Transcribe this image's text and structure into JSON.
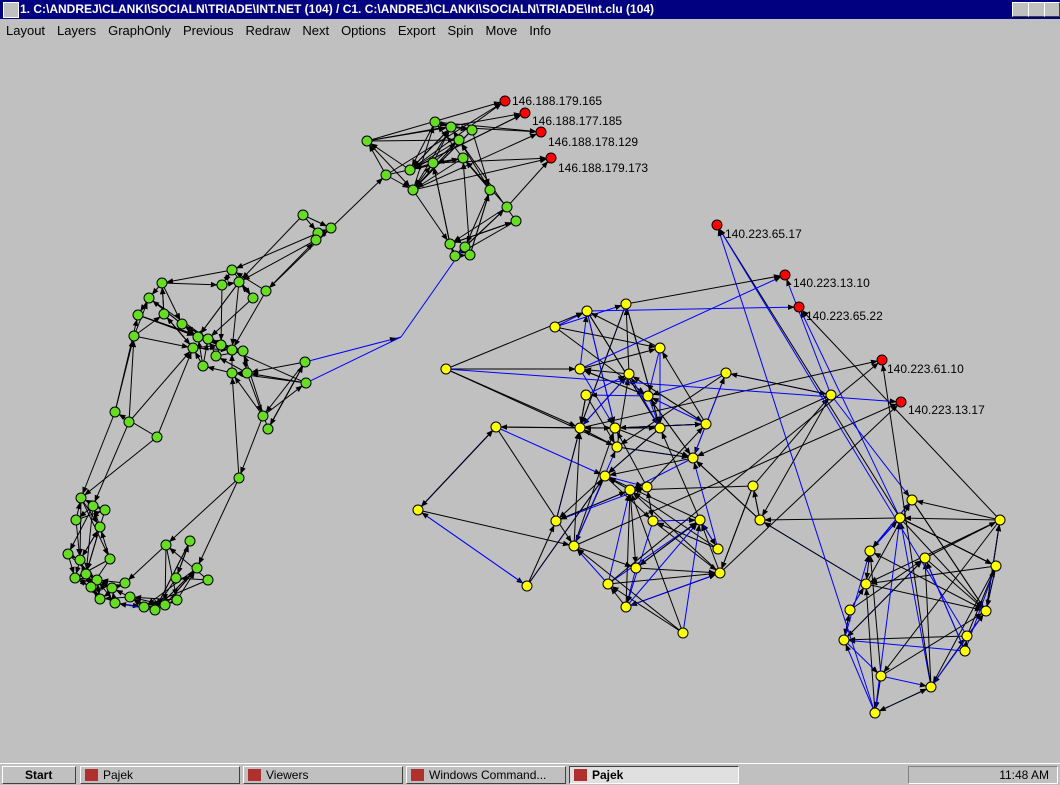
{
  "window": {
    "title": "1. C:\\ANDREJ\\CLANKI\\SOCIALN\\TRIADE\\INT.NET (104) / C1. C:\\ANDREJ\\CLANKI\\SOCIALN\\TRIADE\\Int.clu (104)"
  },
  "menu": [
    "Layout",
    "Layers",
    "GraphOnly",
    "Previous",
    "Redraw",
    "Next",
    "Options",
    "Export",
    "Spin",
    "Move",
    "Info"
  ],
  "network": {
    "labels": [
      "146.188.179.165",
      "146.188.177.185",
      "146.188.178.129",
      "146.188.179.173",
      "140.223.65.17",
      "140.223.13.10",
      "140.223.65.22",
      "140.223.61.10",
      "140.223.13.17"
    ]
  },
  "taskbar": {
    "start": "Start",
    "buttons": [
      "Pajek",
      "Viewers",
      "Windows Command...",
      "Pajek"
    ],
    "clock": "11:48 AM"
  }
}
